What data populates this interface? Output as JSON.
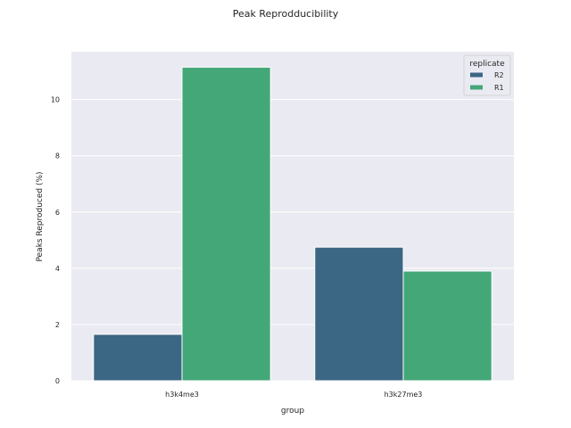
{
  "chart_data": {
    "type": "bar",
    "title": "Peak Reprodducibility",
    "xlabel": "group",
    "ylabel": "Peaks Reproduced (%)",
    "categories": [
      "h3k4me3",
      "h3k27me3"
    ],
    "series": [
      {
        "name": "R2",
        "values": [
          1.65,
          4.75
        ],
        "color": "#3b6684"
      },
      {
        "name": "R1",
        "values": [
          11.15,
          3.9
        ],
        "color": "#44a778"
      }
    ],
    "ylim": [
      0,
      11.7
    ],
    "yticks": [
      0,
      2,
      4,
      6,
      8,
      10
    ],
    "grid": true,
    "legend": {
      "title": "replicate",
      "placement": "top-right"
    },
    "colors": {
      "background": "#eaeaf2",
      "grid": "#ffffff"
    }
  }
}
